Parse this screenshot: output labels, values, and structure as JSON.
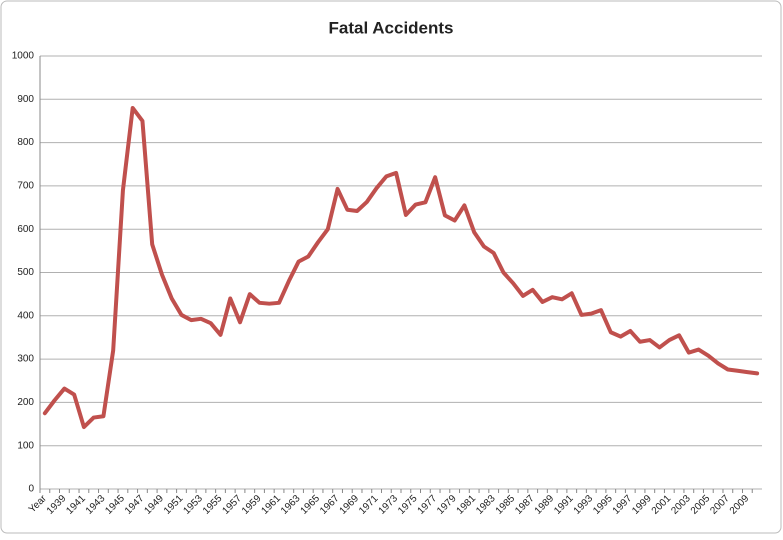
{
  "chart_data": {
    "type": "line",
    "title": "Fatal Accidents",
    "categories": [
      "Year",
      null,
      "1939",
      null,
      "1941",
      null,
      "1943",
      null,
      "1945",
      null,
      "1947",
      null,
      "1949",
      null,
      "1951",
      null,
      "1953",
      null,
      "1955",
      null,
      "1957",
      null,
      "1959",
      null,
      "1961",
      null,
      "1963",
      null,
      "1965",
      null,
      "1967",
      null,
      "1969",
      null,
      "1971",
      null,
      "1973",
      null,
      "1975",
      null,
      "1977",
      null,
      "1979",
      null,
      "1981",
      null,
      "1983",
      null,
      "1985",
      null,
      "1987",
      null,
      "1989",
      null,
      "1991",
      null,
      "1993",
      null,
      "1995",
      null,
      "1997",
      null,
      "1999",
      null,
      "2001",
      null,
      "2003",
      null,
      "2005",
      null,
      "2007",
      null,
      "2009",
      null
    ],
    "values": [
      175,
      205,
      232,
      218,
      143,
      165,
      168,
      320,
      690,
      880,
      850,
      565,
      495,
      440,
      402,
      390,
      393,
      383,
      356,
      440,
      385,
      450,
      430,
      428,
      430,
      480,
      525,
      537,
      570,
      600,
      693,
      645,
      642,
      663,
      695,
      722,
      730,
      633,
      657,
      662,
      720,
      632,
      620,
      655,
      593,
      560,
      545,
      500,
      475,
      446,
      460,
      432,
      443,
      438,
      452,
      402,
      405,
      413,
      362,
      352,
      365,
      340,
      344,
      327,
      344,
      355,
      315,
      322,
      308,
      290,
      276,
      273,
      270,
      267
    ],
    "color": "#c0504d",
    "ylim": [
      0,
      1000
    ],
    "yticks": [
      0,
      100,
      200,
      300,
      400,
      500,
      600,
      700,
      800,
      900,
      1000
    ],
    "grid": true
  }
}
